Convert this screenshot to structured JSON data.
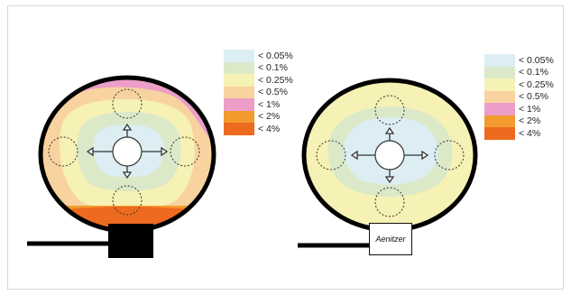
{
  "legend_left": {
    "items": [
      {
        "label": "< 0.05%",
        "color": "#dceef3"
      },
      {
        "label": "< 0.1%",
        "color": "#dbe9c9"
      },
      {
        "label": "< 0.25%",
        "color": "#f6f1b4"
      },
      {
        "label": "< 0.5%",
        "color": "#f8d3a0"
      },
      {
        "label": "< 1%",
        "color": "#ec9ec9"
      },
      {
        "label": "< 2%",
        "color": "#f39a2f"
      },
      {
        "label": "< 4%",
        "color": "#ee6a1f"
      }
    ]
  },
  "legend_right": {
    "items": [
      {
        "label": "< 0.05%",
        "color": "#dceef3"
      },
      {
        "label": "< 0.1%",
        "color": "#dbe9c9"
      },
      {
        "label": "< 0.25%",
        "color": "#f6f1b4"
      },
      {
        "label": "< 0.5%",
        "color": "#f8d3a0"
      },
      {
        "label": "< 1%",
        "color": "#ec9ec9"
      },
      {
        "label": "< 2%",
        "color": "#f39a2f"
      },
      {
        "label": "< 4%",
        "color": "#ee6a1f"
      }
    ]
  },
  "right_device": {
    "label": "Aenitzer"
  }
}
